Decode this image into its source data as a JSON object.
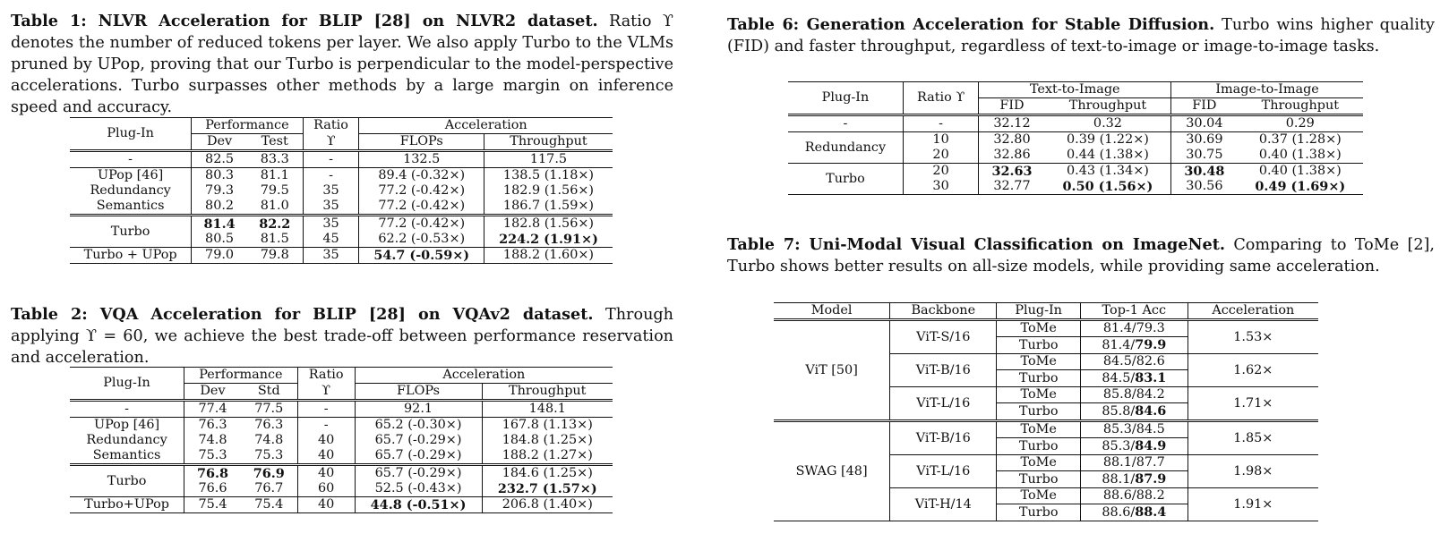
{
  "t1": {
    "cap_label": "Table 1: NLVR Acceleration for BLIP [28] on NLVR2 dataset.",
    "cap_text": " Ratio ϒ denotes the number of reduced tokens per layer. We also apply Turbo to the VLMs pruned by UPop, proving that our Turbo is perpendicular to the model-perspective accelerations. Turbo surpasses other methods by a large margin on inference speed and accuracy.",
    "h": {
      "plugin": "Plug-In",
      "perf": "Performance",
      "ratio": "Ratio",
      "ratio_sym": "ϒ",
      "acc": "Acceleration",
      "dev": "Dev",
      "test": "Test",
      "flops": "FLOPs",
      "thr": "Throughput"
    },
    "rows": [
      [
        "-",
        "82.5",
        "83.3",
        "-",
        "132.5",
        "117.5"
      ],
      [
        "UPop [46]",
        "80.3",
        "81.1",
        "-",
        "89.4 (-0.32×)",
        "138.5 (1.18×)"
      ],
      [
        "Redundancy",
        "79.3",
        "79.5",
        "35",
        "77.2 (-0.42×)",
        "182.9 (1.56×)"
      ],
      [
        "Semantics",
        "80.2",
        "81.0",
        "35",
        "77.2 (-0.42×)",
        "186.7 (1.59×)"
      ],
      [
        "Turbo",
        "81.4",
        "82.2",
        "35",
        "77.2 (-0.42×)",
        "182.8 (1.56×)"
      ],
      [
        "",
        "80.5",
        "81.5",
        "45",
        "62.2 (-0.53×)",
        "224.2 (1.91×)"
      ],
      [
        "Turbo + UPop",
        "79.0",
        "79.8",
        "35",
        "54.7 (-0.59×)",
        "188.2 (1.60×)"
      ]
    ]
  },
  "t2": {
    "cap_label": "Table 2: VQA Acceleration for BLIP [28] on VQAv2 dataset.",
    "cap_text": " Through applying ϒ = 60, we achieve the best trade-off between performance reservation and acceleration.",
    "h": {
      "plugin": "Plug-In",
      "perf": "Performance",
      "ratio": "Ratio",
      "ratio_sym": "ϒ",
      "acc": "Acceleration",
      "dev": "Dev",
      "std": "Std",
      "flops": "FLOPs",
      "thr": "Throughput"
    },
    "rows": [
      [
        "-",
        "77.4",
        "77.5",
        "-",
        "92.1",
        "148.1"
      ],
      [
        "UPop [46]",
        "76.3",
        "76.3",
        "-",
        "65.2 (-0.30×)",
        "167.8 (1.13×)"
      ],
      [
        "Redundancy",
        "74.8",
        "74.8",
        "40",
        "65.7 (-0.29×)",
        "184.8 (1.25×)"
      ],
      [
        "Semantics",
        "75.3",
        "75.3",
        "40",
        "65.7 (-0.29×)",
        "188.2 (1.27×)"
      ],
      [
        "Turbo",
        "76.8",
        "76.9",
        "40",
        "65.7 (-0.29×)",
        "184.6 (1.25×)"
      ],
      [
        "",
        "76.6",
        "76.7",
        "60",
        "52.5 (-0.43×)",
        "232.7 (1.57×)"
      ],
      [
        "Turbo+UPop",
        "75.4",
        "75.4",
        "40",
        "44.8 (-0.51×)",
        "206.8 (1.40×)"
      ]
    ]
  },
  "t6": {
    "cap_label": "Table 6: Generation Acceleration for Stable Diffusion.",
    "cap_text": " Turbo wins higher quality (FID) and faster throughput, regardless of text-to-image or image-to-image tasks.",
    "h": {
      "plugin": "Plug-In",
      "ratio": "Ratio ϒ",
      "t2i": "Text-to-Image",
      "i2i": "Image-to-Image",
      "fid": "FID",
      "thr": "Throughput"
    },
    "rows": [
      [
        "-",
        "-",
        "32.12",
        "0.32",
        "30.04",
        "0.29"
      ],
      [
        "Redundancy",
        "10",
        "32.80",
        "0.39 (1.22×)",
        "30.69",
        "0.37 (1.28×)"
      ],
      [
        "",
        "20",
        "32.86",
        "0.44 (1.38×)",
        "30.75",
        "0.40 (1.38×)"
      ],
      [
        "Turbo",
        "20",
        "32.63",
        "0.43 (1.34×)",
        "30.48",
        "0.40 (1.38×)"
      ],
      [
        "",
        "30",
        "32.77",
        "0.50 (1.56×)",
        "30.56",
        "0.49 (1.69×)"
      ]
    ]
  },
  "t7": {
    "cap_label": "Table 7: Uni-Modal Visual Classification on ImageNet.",
    "cap_text": " Comparing to ToMe [2], Turbo shows better results on all-size models, while providing same acceleration.",
    "h": {
      "model": "Model",
      "backbone": "Backbone",
      "plugin": "Plug-In",
      "top1": "Top-1 Acc",
      "acc": "Acceleration"
    },
    "groups": [
      {
        "model": "ViT [50]",
        "backbones": [
          {
            "name": "ViT-S/16",
            "acc": "1.53×",
            "tome": [
              "81.4/79.3",
              ""
            ],
            "turbo": [
              "81.4/",
              "79.9"
            ]
          },
          {
            "name": "ViT-B/16",
            "acc": "1.62×",
            "tome": [
              "84.5/82.6",
              ""
            ],
            "turbo": [
              "84.5/",
              "83.1"
            ]
          },
          {
            "name": "ViT-L/16",
            "acc": "1.71×",
            "tome": [
              "85.8/84.2",
              ""
            ],
            "turbo": [
              "85.8/",
              "84.6"
            ]
          }
        ]
      },
      {
        "model": "SWAG [48]",
        "backbones": [
          {
            "name": "ViT-B/16",
            "acc": "1.85×",
            "tome": [
              "85.3/84.5",
              ""
            ],
            "turbo": [
              "85.3/",
              "84.9"
            ]
          },
          {
            "name": "ViT-L/16",
            "acc": "1.98×",
            "tome": [
              "88.1/87.7",
              ""
            ],
            "turbo": [
              "88.1/",
              "87.9"
            ]
          },
          {
            "name": "ViT-H/14",
            "acc": "1.91×",
            "tome": [
              "88.6/88.2",
              ""
            ],
            "turbo": [
              "88.6/",
              "88.4"
            ]
          }
        ]
      }
    ],
    "tome_label": "ToMe",
    "turbo_label": "Turbo"
  }
}
